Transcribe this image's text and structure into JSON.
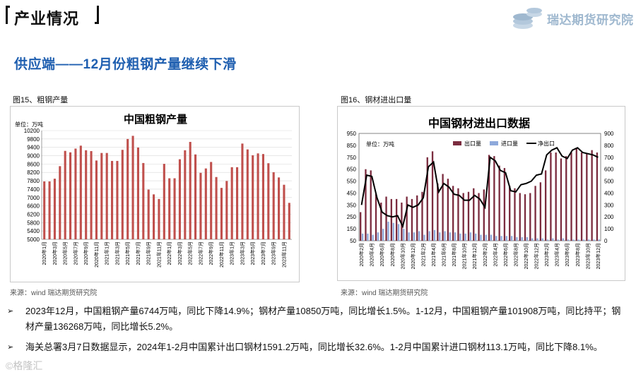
{
  "header": {
    "title": "产业情况"
  },
  "logo": {
    "text": "瑞达期货研究院"
  },
  "subtitle": "供应端——12月份粗钢产量继续下滑",
  "fig15": {
    "caption": "图15、粗钢产量",
    "source": "来源：wind   瑞达期货研究院"
  },
  "fig16": {
    "caption": "图16、钢材进出口量",
    "source": "来源：wind   瑞达期货研究院"
  },
  "bullets": [
    "2023年12月，中国粗钢产量6744万吨，同比下降14.9%；钢材产量10850万吨，同比增长1.5%。1-12月，中国粗钢产量101908万吨，同比持平；钢材产量136268万吨，同比增长5.2%。",
    "海关总署3月7日数据显示，2024年1-2月中国累计出口钢材1591.2万吨，同比增长32.6%。1-2月中国累计进口钢材113.1万吨，同比下降8.1%。"
  ],
  "bullet_mark": "➢",
  "watermark": "©格隆汇",
  "colors": {
    "bar_red": "#c0504d",
    "bar_export": "#7b2c3f",
    "bar_import": "#8ea9db",
    "net_line": "#000000",
    "subtitle_blue": "#1f5fb0"
  },
  "chart_data": [
    {
      "type": "bar",
      "title": "中国粗钢产量",
      "unit": "单位：万吨",
      "ylim": [
        5000,
        10200
      ],
      "yticks": [
        5000,
        5400,
        5800,
        6200,
        6600,
        7000,
        7400,
        7800,
        8200,
        8600,
        9000,
        9400,
        9800,
        10200
      ],
      "grid": true,
      "categories": [
        "2020年1月",
        "2020年2月",
        "2020年3月",
        "2020年4月",
        "2020年5月",
        "2020年6月",
        "2020年7月",
        "2020年8月",
        "2020年9月",
        "2020年10月",
        "2020年11月",
        "2020年12月",
        "2021年1月",
        "2021年2月",
        "2021年3月",
        "2021年4月",
        "2021年5月",
        "2021年6月",
        "2021年7月",
        "2021年8月",
        "2021年9月",
        "2021年10月",
        "2021年11月",
        "2021年12月",
        "2022年1月",
        "2022年2月",
        "2022年3月",
        "2022年4月",
        "2022年5月",
        "2022年6月",
        "2022年7月",
        "2022年8月",
        "2022年9月",
        "2022年10月",
        "2022年11月",
        "2022年12月",
        "2023年1月",
        "2023年2月",
        "2023年3月",
        "2023年4月",
        "2023年5月",
        "2023年6月",
        "2023年7月",
        "2023年8月",
        "2023年9月",
        "2023年10月",
        "2023年11月",
        "2023年12月"
      ],
      "xticklabels": [
        "2020年1月",
        "2020年3月",
        "2020年5月",
        "2020年7月",
        "2020年9月",
        "2020年11月",
        "2021年1月",
        "2021年3月",
        "2021年5月",
        "2021年7月",
        "2021年9月",
        "2021年11月",
        "2022年1月",
        "2022年3月",
        "2022年5月",
        "2022年7月",
        "2022年9月",
        "2022年11月",
        "2023年1月",
        "2023年3月",
        "2023年5月",
        "2023年7月",
        "2023年9月",
        "2023年11月"
      ],
      "values": [
        7770,
        7770,
        7900,
        8500,
        9230,
        9160,
        9340,
        9480,
        9260,
        9220,
        8770,
        9130,
        9130,
        8750,
        8750,
        9280,
        9800,
        9950,
        9390,
        8650,
        7380,
        7150,
        6930,
        8610,
        7920,
        7920,
        8830,
        9260,
        9660,
        9060,
        8180,
        8390,
        8700,
        7980,
        7460,
        7790,
        8450,
        8450,
        9580,
        9300,
        9020,
        9110,
        9080,
        8640,
        8210,
        7960,
        7610,
        6744
      ]
    },
    {
      "type": "bar+line",
      "title": "中国钢材进出口数据",
      "unit": "单位：万吨",
      "ylim_left": [
        50,
        950
      ],
      "ylim_right": [
        0,
        900
      ],
      "yticks_left": [
        50,
        150,
        250,
        350,
        450,
        550,
        650,
        750,
        850,
        950
      ],
      "yticks_right": [
        0,
        100,
        200,
        300,
        400,
        500,
        600,
        700,
        800,
        900
      ],
      "legend": [
        "出口量",
        "进口量",
        "净出口"
      ],
      "legend_position": "top",
      "categories": [
        "2020年2月",
        "2020年3月",
        "2020年4月",
        "2020年5月",
        "2020年6月",
        "2020年7月",
        "2020年8月",
        "2020年9月",
        "2020年10月",
        "2020年11月",
        "2020年12月",
        "2021年1月",
        "2021年2月",
        "2021年3月",
        "2021年4月",
        "2021年5月",
        "2021年6月",
        "2021年7月",
        "2021年8月",
        "2021年9月",
        "2021年10月",
        "2021年11月",
        "2021年12月",
        "2022年1月",
        "2022年2月",
        "2022年3月",
        "2022年4月",
        "2022年5月",
        "2022年6月",
        "2022年7月",
        "2022年8月",
        "2022年9月",
        "2022年10月",
        "2022年11月",
        "2022年12月",
        "2023年1月",
        "2023年2月",
        "2023年3月",
        "2023年4月",
        "2023年5月",
        "2023年6月",
        "2023年7月",
        "2023年8月",
        "2023年9月",
        "2023年10月",
        "2023年11月",
        "2023年12月"
      ],
      "xticklabels": [
        "2020年2月",
        "2020年4月",
        "2020年6月",
        "2020年8月",
        "2020年10月",
        "2020年12月",
        "2021年2月",
        "2021年4月",
        "2021年6月",
        "2021年8月",
        "2021年10月",
        "2021年12月",
        "2022年2月",
        "2022年4月",
        "2022年6月",
        "2022年8月",
        "2022年10月",
        "2022年12月",
        "2023年2月",
        "2023年4月",
        "2023年6月",
        "2023年8月",
        "2023年10月",
        "2023年12月"
      ],
      "series": [
        {
          "name": "出口量",
          "axis": "left",
          "values": [
            290,
            650,
            640,
            440,
            370,
            420,
            400,
            400,
            370,
            420,
            400,
            430,
            460,
            750,
            800,
            530,
            610,
            570,
            510,
            490,
            450,
            460,
            490,
            450,
            480,
            770,
            760,
            680,
            660,
            510,
            490,
            450,
            440,
            450,
            510,
            540,
            640,
            790,
            790,
            740,
            760,
            790,
            830,
            790,
            780,
            810,
            790
          ]
        },
        {
          "name": "进口量",
          "axis": "left",
          "values": [
            110,
            110,
            100,
            120,
            150,
            210,
            200,
            190,
            150,
            120,
            120,
            130,
            100,
            130,
            140,
            120,
            130,
            120,
            120,
            110,
            110,
            120,
            110,
            100,
            100,
            100,
            90,
            90,
            90,
            90,
            80,
            80,
            80,
            70,
            70,
            70,
            60,
            70,
            60,
            70,
            60,
            60,
            60,
            60,
            60,
            60,
            60
          ]
        },
        {
          "name": "净出口",
          "axis": "right",
          "values": [
            300,
            550,
            540,
            360,
            240,
            210,
            200,
            210,
            120,
            300,
            280,
            300,
            360,
            620,
            660,
            410,
            480,
            450,
            390,
            380,
            340,
            340,
            380,
            350,
            280,
            700,
            670,
            590,
            570,
            420,
            410,
            470,
            480,
            500,
            550,
            560,
            720,
            760,
            780,
            710,
            690,
            760,
            780,
            740,
            730,
            720,
            700
          ]
        }
      ]
    }
  ]
}
